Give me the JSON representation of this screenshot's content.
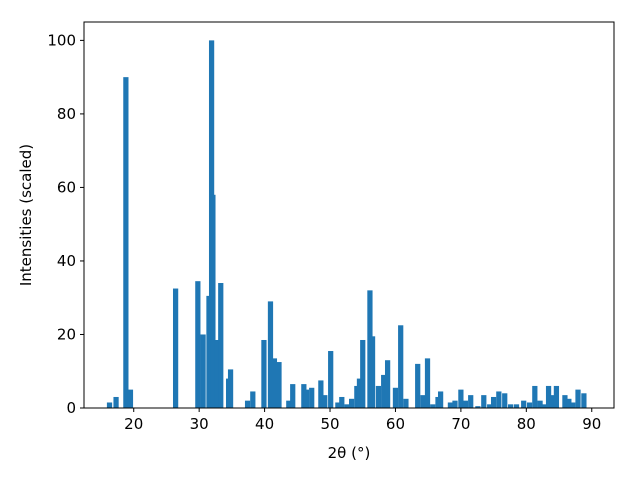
{
  "chart_data": {
    "type": "bar",
    "color": "#1f77b4",
    "xlabel": "2θ (°)",
    "ylabel": "Intensities (scaled)",
    "x": [
      16.3,
      17.3,
      18.8,
      19.5,
      26.4,
      29.8,
      30.6,
      31.5,
      31.9,
      32.1,
      32.8,
      33.3,
      34.5,
      34.8,
      37.4,
      38.2,
      39.9,
      40.9,
      41.5,
      42.2,
      43.7,
      44.3,
      46.0,
      46.4,
      47.2,
      48.6,
      49.2,
      50.1,
      51.2,
      51.8,
      52.6,
      53.3,
      54.1,
      54.5,
      55.0,
      56.1,
      56.5,
      57.4,
      58.2,
      58.8,
      60.0,
      60.8,
      61.6,
      63.4,
      64.2,
      64.9,
      65.7,
      66.5,
      66.9,
      68.4,
      69.1,
      70.0,
      70.7,
      71.5,
      72.6,
      73.5,
      74.4,
      75.0,
      75.8,
      76.7,
      77.6,
      78.5,
      79.6,
      80.5,
      81.3,
      82.1,
      82.7,
      83.4,
      83.9,
      84.6,
      85.9,
      86.5,
      87.1,
      87.9,
      88.8
    ],
    "values": [
      1.5,
      3,
      90,
      5,
      32.5,
      34.5,
      20,
      30.5,
      100,
      58,
      18.5,
      34,
      8,
      10.5,
      2,
      4.5,
      18.5,
      29,
      13.5,
      12.5,
      2,
      6.5,
      6.5,
      5,
      5.5,
      7.5,
      3.5,
      15.5,
      1.5,
      3,
      1,
      2.5,
      6,
      8,
      18.5,
      32,
      19.5,
      6,
      9,
      13,
      5.5,
      22.5,
      2.5,
      12,
      3.5,
      13.5,
      1,
      3,
      4.5,
      1.5,
      2,
      5,
      2,
      3.5,
      0.5,
      3.5,
      1,
      3,
      4.5,
      4,
      1,
      1,
      2,
      1.5,
      6,
      2,
      1,
      6,
      3.5,
      6,
      3.5,
      2.5,
      1.5,
      5,
      4
    ],
    "xlim": [
      12.4,
      93.4
    ],
    "ylim": [
      0,
      105
    ],
    "xticks": [
      20,
      30,
      40,
      50,
      60,
      70,
      80,
      90
    ],
    "yticks": [
      0,
      20,
      40,
      60,
      80,
      100
    ]
  }
}
